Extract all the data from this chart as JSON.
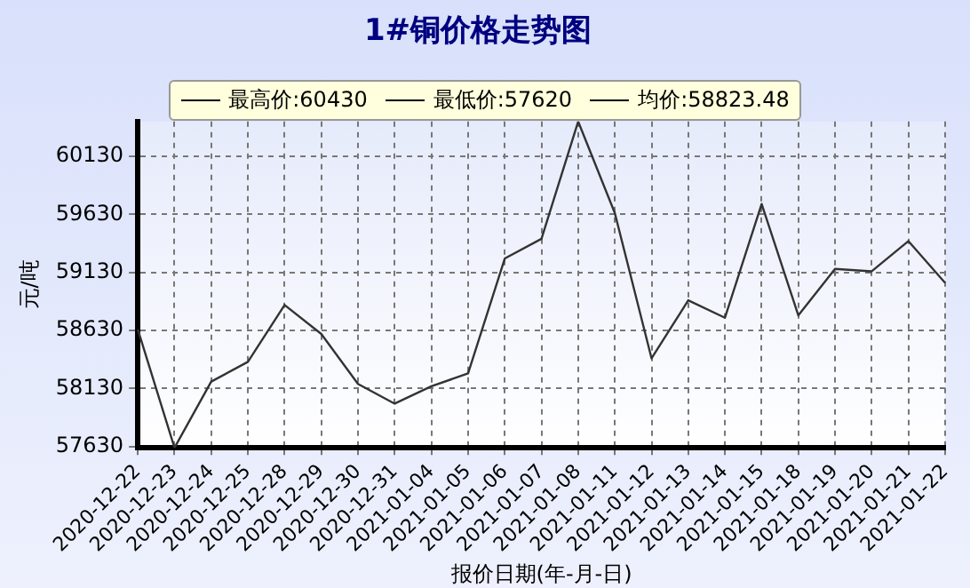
{
  "chart_data": {
    "type": "line",
    "title": "1#铜价格走势图",
    "xlabel": "报价日期(年-月-日)",
    "ylabel": "元/吨",
    "categories": [
      "2020-12-22",
      "2020-12-23",
      "2020-12-24",
      "2020-12-25",
      "2020-12-28",
      "2020-12-29",
      "2020-12-30",
      "2020-12-31",
      "2021-01-04",
      "2021-01-05",
      "2021-01-06",
      "2021-01-07",
      "2021-01-08",
      "2021-01-11",
      "2021-01-12",
      "2021-01-13",
      "2021-01-14",
      "2021-01-15",
      "2021-01-18",
      "2021-01-19",
      "2021-01-20",
      "2021-01-21",
      "2021-01-22"
    ],
    "series": [
      {
        "color": "#333333",
        "values": [
          58640,
          57620,
          58190,
          58360,
          58850,
          58600,
          58170,
          58000,
          58150,
          58260,
          59250,
          59420,
          60430,
          59640,
          58390,
          58890,
          58740,
          59720,
          58760,
          59160,
          59140,
          59400,
          59040
        ]
      }
    ],
    "ylim": [
      57620,
      60430
    ],
    "yticks": [
      57630,
      58130,
      58630,
      59130,
      59630,
      60130
    ],
    "grid": true,
    "marker": "none",
    "line_style": "solid",
    "annotations": [
      "最高价:60430",
      "最低价:57620",
      "均价:58823.48"
    ]
  }
}
